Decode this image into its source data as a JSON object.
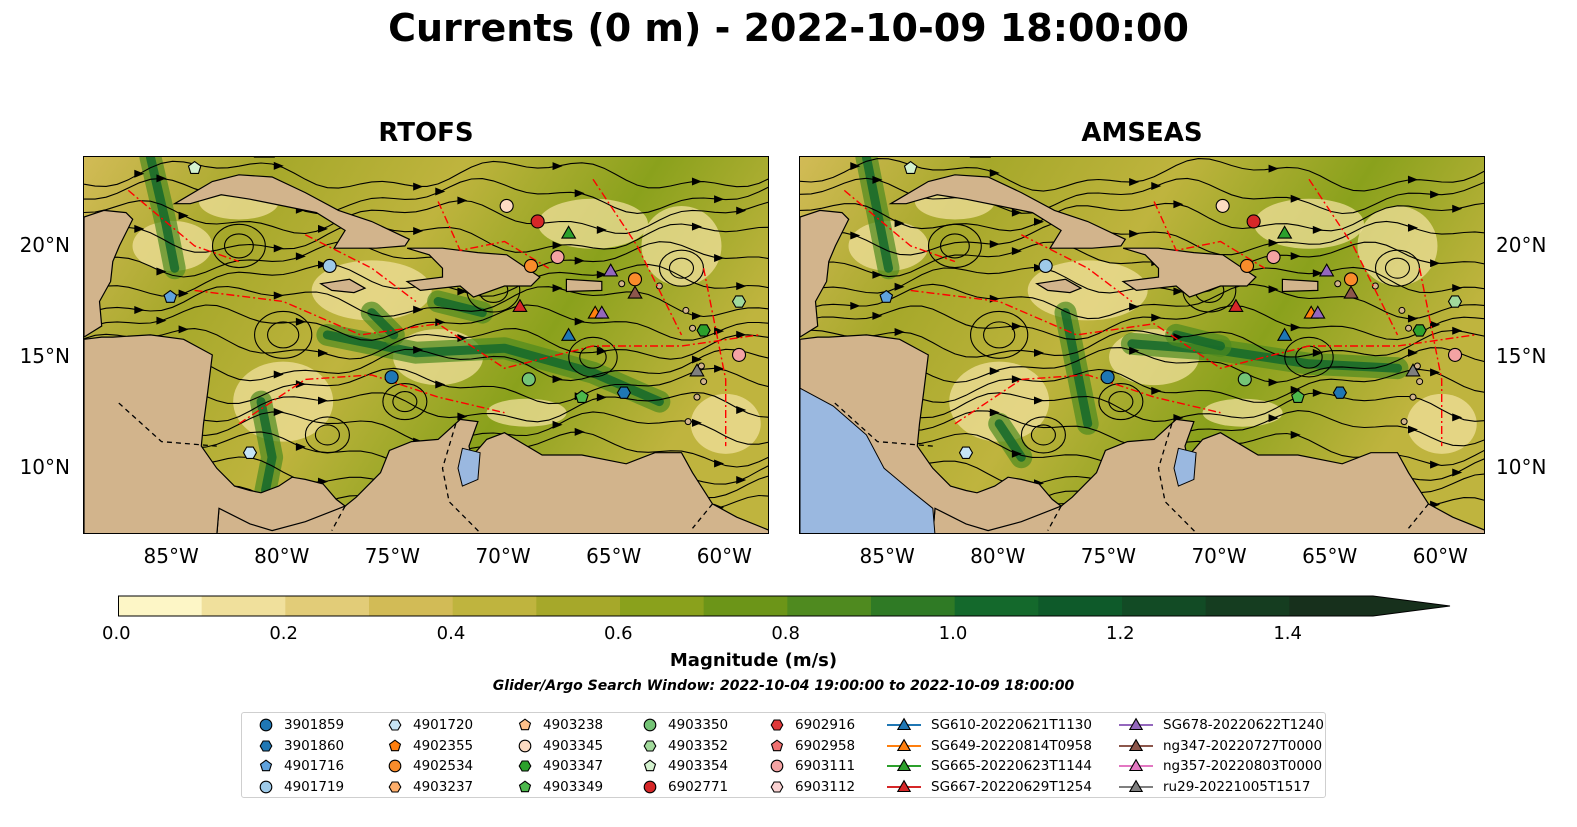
{
  "title": "Currents (0 m) - 2022-10-09 18:00:00",
  "panels": [
    {
      "title": "RTOFS",
      "eastern_sea": "ocean-tinted"
    },
    {
      "title": "AMSEAS",
      "eastern_sea": "masked-blue"
    }
  ],
  "map": {
    "field": "surface current magnitude with streamlines",
    "lon_range": [
      -89,
      -58
    ],
    "lat_range": [
      7,
      24
    ],
    "lat_ticks": [
      "20°N",
      "15°N",
      "10°N"
    ],
    "lon_ticks": [
      "85°W",
      "80°W",
      "75°W",
      "70°W",
      "65°W",
      "60°W"
    ],
    "colors": {
      "land": "#d2b48c",
      "masked_ocean": "#9ab8e0",
      "eez_line": "#ff0000",
      "border_line": "#000000"
    }
  },
  "colorbar": {
    "label": "Magnitude (m/s)",
    "range": [
      0.0,
      1.5
    ],
    "extend": "max",
    "ticks": [
      "0.0",
      "0.2",
      "0.4",
      "0.6",
      "0.8",
      "1.0",
      "1.2",
      "1.4"
    ],
    "colors": [
      "#fdf6c6",
      "#f0e09c",
      "#e2cc78",
      "#d2bb56",
      "#bfb43e",
      "#a6a82a",
      "#8aa11c",
      "#6c9518",
      "#4f8a1f",
      "#2f7a25",
      "#14692c",
      "#0e5a2a",
      "#124b25",
      "#153d20",
      "#17301c"
    ]
  },
  "search_window": "Glider/Argo Search Window: 2022-10-04 19:00:00 to 2022-10-09 18:00:00",
  "legend": [
    {
      "label": "3901859",
      "marker": "circle",
      "color": "#1f77b4"
    },
    {
      "label": "3901860",
      "marker": "hexagon",
      "color": "#1f77b4"
    },
    {
      "label": "4901716",
      "marker": "pentagon",
      "color": "#5fa2dd"
    },
    {
      "label": "4901719",
      "marker": "circle",
      "color": "#9ecae9"
    },
    {
      "label": "4901720",
      "marker": "hexagon",
      "color": "#c6e4f5"
    },
    {
      "label": "4902355",
      "marker": "pentagon",
      "color": "#ff7f0e"
    },
    {
      "label": "4902534",
      "marker": "circle",
      "color": "#f98c2b"
    },
    {
      "label": "4903237",
      "marker": "hexagon",
      "color": "#fdae6b"
    },
    {
      "label": "4903238",
      "marker": "pentagon",
      "color": "#fdc08a"
    },
    {
      "label": "4903345",
      "marker": "circle",
      "color": "#fddbc2"
    },
    {
      "label": "4903347",
      "marker": "hexagon",
      "color": "#2ca02c"
    },
    {
      "label": "4903349",
      "marker": "pentagon",
      "color": "#4cb84c"
    },
    {
      "label": "4903350",
      "marker": "circle",
      "color": "#74c476"
    },
    {
      "label": "4903352",
      "marker": "hexagon",
      "color": "#a1d99b"
    },
    {
      "label": "4903354",
      "marker": "pentagon",
      "color": "#d4f2cf"
    },
    {
      "label": "6902771",
      "marker": "circle",
      "color": "#d62728"
    },
    {
      "label": "6902916",
      "marker": "hexagon",
      "color": "#e0393a"
    },
    {
      "label": "6902958",
      "marker": "pentagon",
      "color": "#f07070"
    },
    {
      "label": "6903111",
      "marker": "circle",
      "color": "#f4a3a3"
    },
    {
      "label": "6903112",
      "marker": "hexagon",
      "color": "#fad2d2"
    },
    {
      "label": "SG610-20220621T1130",
      "marker": "triangle-line",
      "color": "#1f77b4"
    },
    {
      "label": "SG649-20220814T0958",
      "marker": "triangle-line",
      "color": "#ff7f0e"
    },
    {
      "label": "SG665-20220623T1144",
      "marker": "triangle-line",
      "color": "#2ca02c"
    },
    {
      "label": "SG667-20220629T1254",
      "marker": "triangle-line",
      "color": "#d62728"
    },
    {
      "label": "SG678-20220622T1240",
      "marker": "triangle-line",
      "color": "#9467bd"
    },
    {
      "label": "ng347-20220727T0000",
      "marker": "triangle-line",
      "color": "#8c564b"
    },
    {
      "label": "ng357-20220803T0000",
      "marker": "triangle-line",
      "color": "#e377c2"
    },
    {
      "label": "ru29-20221005T1517",
      "marker": "triangle-line",
      "color": "#7f7f7f"
    }
  ],
  "platforms": [
    {
      "id": "4903354",
      "lon": -84.0,
      "lat": 23.5
    },
    {
      "id": "4901719",
      "lon": -77.9,
      "lat": 19.1
    },
    {
      "id": "4901716",
      "lon": -85.1,
      "lat": 17.7
    },
    {
      "id": "4901720",
      "lon": -81.5,
      "lat": 10.7
    },
    {
      "id": "3901859",
      "lon": -75.1,
      "lat": 14.1
    },
    {
      "id": "4903345",
      "lon": -69.9,
      "lat": 21.8
    },
    {
      "id": "6902771",
      "lon": -68.5,
      "lat": 21.1
    },
    {
      "id": "SG665-20220623T1144",
      "lon": -67.1,
      "lat": 20.6
    },
    {
      "id": "4902534",
      "lon": -68.8,
      "lat": 19.1
    },
    {
      "id": "6903111",
      "lon": -67.6,
      "lat": 19.5
    },
    {
      "id": "SG667-20220629T1254",
      "lon": -69.3,
      "lat": 17.3
    },
    {
      "id": "SG678-20220622T1240",
      "lon": -65.2,
      "lat": 18.9
    },
    {
      "id": "4902534",
      "lon": -64.1,
      "lat": 18.5
    },
    {
      "id": "ng347-20220727T0000",
      "lon": -64.1,
      "lat": 17.9
    },
    {
      "id": "SG649-20220814T0958",
      "lon": -65.9,
      "lat": 17.0
    },
    {
      "id": "SG678-20220622T1240",
      "lon": -65.6,
      "lat": 17.0
    },
    {
      "id": "SG610-20220621T1130",
      "lon": -67.1,
      "lat": 16.0
    },
    {
      "id": "4903352",
      "lon": -59.4,
      "lat": 17.5
    },
    {
      "id": "4903347",
      "lon": -61.0,
      "lat": 16.2
    },
    {
      "id": "6903111",
      "lon": -59.4,
      "lat": 15.1
    },
    {
      "id": "ru29-20221005T1517",
      "lon": -61.3,
      "lat": 14.4
    },
    {
      "id": "3901860",
      "lon": -64.6,
      "lat": 13.4
    },
    {
      "id": "4903349",
      "lon": -66.5,
      "lat": 13.2
    },
    {
      "id": "4903350",
      "lon": -68.9,
      "lat": 14.0
    }
  ]
}
